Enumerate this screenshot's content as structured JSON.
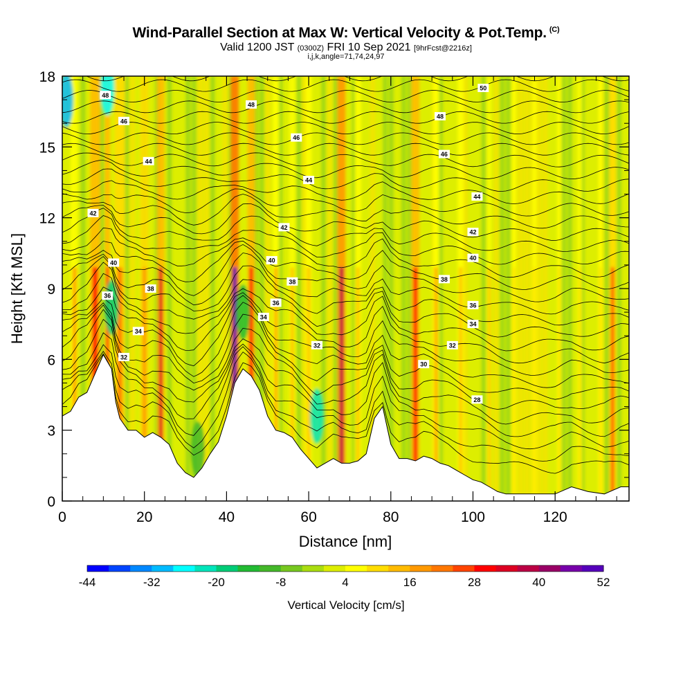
{
  "header": {
    "title": "Wind-Parallel Section at Max W: Vertical Velocity & Pot.Temp.",
    "title_mark": "(C)",
    "valid_prefix": "Valid 1200 JST",
    "valid_utc": "(0300Z)",
    "valid_date": "FRI 10 Sep 2021",
    "forecast_tag": "[9hrFcst@2216z]",
    "indices": "i,j,k,angle=71,74,24,97"
  },
  "chart_data": {
    "type": "heatmap",
    "xlabel": "Distance [nm]",
    "ylabel": "Height [Kft MSL]",
    "xlim": [
      0,
      138
    ],
    "ylim": [
      0,
      18
    ],
    "x_ticks": [
      "0",
      "20",
      "40",
      "60",
      "80",
      "100",
      "120"
    ],
    "x_tick_values": [
      0,
      20,
      40,
      60,
      80,
      100,
      120
    ],
    "y_ticks": [
      "0",
      "3",
      "6",
      "9",
      "12",
      "15",
      "18"
    ],
    "y_tick_values": [
      0,
      3,
      6,
      9,
      12,
      15,
      18
    ],
    "colorbar": {
      "label": "Vertical Velocity [cm/s]",
      "tick_labels": [
        "-44",
        "-32",
        "-20",
        "-8",
        "4",
        "16",
        "28",
        "40",
        "52"
      ],
      "tick_values": [
        -44,
        -32,
        -20,
        -8,
        4,
        16,
        28,
        40,
        52
      ],
      "colors": [
        "#0000ff",
        "#0044ff",
        "#0088ff",
        "#00bbff",
        "#00ffff",
        "#00e5bb",
        "#00cc77",
        "#22bb33",
        "#44b82a",
        "#77c820",
        "#aadd10",
        "#ddee00",
        "#ffff00",
        "#ffdd00",
        "#ffbb00",
        "#ff9900",
        "#ff7700",
        "#ff4400",
        "#ff0000",
        "#dd0022",
        "#bb0044",
        "#990066",
        "#7700aa",
        "#5500bb"
      ]
    },
    "terrain_kft": [
      [
        0,
        3.6
      ],
      [
        2,
        3.8
      ],
      [
        4,
        4.4
      ],
      [
        6,
        4.6
      ],
      [
        8,
        5.4
      ],
      [
        10,
        6.2
      ],
      [
        12,
        5.6
      ],
      [
        13,
        4.2
      ],
      [
        14,
        3.5
      ],
      [
        16,
        3.0
      ],
      [
        18,
        3.0
      ],
      [
        20,
        2.7
      ],
      [
        22,
        2.9
      ],
      [
        24,
        2.7
      ],
      [
        26,
        2.4
      ],
      [
        28,
        1.6
      ],
      [
        30,
        1.2
      ],
      [
        32,
        1.0
      ],
      [
        34,
        1.4
      ],
      [
        36,
        2.0
      ],
      [
        38,
        2.5
      ],
      [
        40,
        3.6
      ],
      [
        42,
        5.0
      ],
      [
        44,
        5.6
      ],
      [
        46,
        5.3
      ],
      [
        48,
        4.7
      ],
      [
        50,
        3.6
      ],
      [
        52,
        3.0
      ],
      [
        54,
        2.9
      ],
      [
        56,
        2.7
      ],
      [
        58,
        2.2
      ],
      [
        60,
        1.8
      ],
      [
        62,
        1.4
      ],
      [
        64,
        1.6
      ],
      [
        66,
        1.8
      ],
      [
        68,
        1.6
      ],
      [
        70,
        1.6
      ],
      [
        72,
        1.7
      ],
      [
        74,
        2.0
      ],
      [
        76,
        3.5
      ],
      [
        78,
        4.0
      ],
      [
        80,
        2.4
      ],
      [
        82,
        1.8
      ],
      [
        84,
        1.8
      ],
      [
        86,
        1.7
      ],
      [
        88,
        1.9
      ],
      [
        90,
        1.8
      ],
      [
        92,
        1.6
      ],
      [
        94,
        1.5
      ],
      [
        96,
        1.3
      ],
      [
        98,
        1.1
      ],
      [
        100,
        0.9
      ],
      [
        102,
        0.8
      ],
      [
        104,
        0.6
      ],
      [
        106,
        0.4
      ],
      [
        108,
        0.3
      ],
      [
        112,
        0.3
      ],
      [
        116,
        0.3
      ],
      [
        120,
        0.3
      ],
      [
        124,
        0.6
      ],
      [
        128,
        0.4
      ],
      [
        132,
        0.3
      ],
      [
        136,
        0.6
      ],
      [
        138,
        0.6
      ]
    ],
    "theta_contours_K": [
      "28",
      "30",
      "32",
      "34",
      "36",
      "38",
      "40",
      "42",
      "44",
      "46",
      "48",
      "50"
    ],
    "theta_contour_labels": [
      {
        "text": "48",
        "x": 10.5,
        "y": 17.2
      },
      {
        "text": "48",
        "x": 46,
        "y": 16.8
      },
      {
        "text": "50",
        "x": 102.5,
        "y": 17.5
      },
      {
        "text": "46",
        "x": 15,
        "y": 16.1
      },
      {
        "text": "48",
        "x": 92,
        "y": 16.3
      },
      {
        "text": "46",
        "x": 57,
        "y": 15.4
      },
      {
        "text": "46",
        "x": 93,
        "y": 14.7
      },
      {
        "text": "44",
        "x": 21,
        "y": 14.4
      },
      {
        "text": "44",
        "x": 60,
        "y": 13.6
      },
      {
        "text": "44",
        "x": 101,
        "y": 12.9
      },
      {
        "text": "42",
        "x": 7.5,
        "y": 12.2
      },
      {
        "text": "42",
        "x": 54,
        "y": 11.6
      },
      {
        "text": "42",
        "x": 100,
        "y": 11.4
      },
      {
        "text": "40",
        "x": 12.5,
        "y": 10.1
      },
      {
        "text": "40",
        "x": 51,
        "y": 10.2
      },
      {
        "text": "40",
        "x": 100,
        "y": 10.3
      },
      {
        "text": "38",
        "x": 21.5,
        "y": 9.0
      },
      {
        "text": "38",
        "x": 56,
        "y": 9.3
      },
      {
        "text": "38",
        "x": 93,
        "y": 9.4
      },
      {
        "text": "36",
        "x": 11,
        "y": 8.7
      },
      {
        "text": "36",
        "x": 52,
        "y": 8.4
      },
      {
        "text": "36",
        "x": 100,
        "y": 8.3
      },
      {
        "text": "34",
        "x": 49,
        "y": 7.8
      },
      {
        "text": "34",
        "x": 100,
        "y": 7.5
      },
      {
        "text": "34",
        "x": 18.5,
        "y": 7.2
      },
      {
        "text": "32",
        "x": 62,
        "y": 6.6
      },
      {
        "text": "32",
        "x": 95,
        "y": 6.6
      },
      {
        "text": "32",
        "x": 15,
        "y": 6.1
      },
      {
        "text": "30",
        "x": 88,
        "y": 5.8
      },
      {
        "text": "28",
        "x": 101,
        "y": 4.3
      }
    ],
    "updraft_bands": [
      {
        "x": 3,
        "w": 2.0,
        "w_cms": 16
      },
      {
        "x": 8,
        "w": 2.5,
        "w_cms": 28
      },
      {
        "x": 11,
        "w": 1.2,
        "w_cms": 30
      },
      {
        "x": 14,
        "w": 2.5,
        "w_cms": 20
      },
      {
        "x": 20,
        "w": 2.0,
        "w_cms": 18
      },
      {
        "x": 24,
        "w": 1.8,
        "w_cms": 34
      },
      {
        "x": 42,
        "w": 2.0,
        "w_cms": 48
      },
      {
        "x": 46,
        "w": 1.8,
        "w_cms": 30
      },
      {
        "x": 52,
        "w": 1.5,
        "w_cms": 16
      },
      {
        "x": 56,
        "w": 1.5,
        "w_cms": 14
      },
      {
        "x": 60,
        "w": 1.5,
        "w_cms": 12
      },
      {
        "x": 68,
        "w": 2.0,
        "w_cms": 36
      },
      {
        "x": 72,
        "w": 1.5,
        "w_cms": 14
      },
      {
        "x": 86,
        "w": 2.0,
        "w_cms": 30
      },
      {
        "x": 91,
        "w": 1.5,
        "w_cms": 16
      },
      {
        "x": 97,
        "w": 1.5,
        "w_cms": 14
      },
      {
        "x": 104,
        "w": 1.2,
        "w_cms": 12
      },
      {
        "x": 110,
        "w": 1.0,
        "w_cms": 10
      },
      {
        "x": 115,
        "w": 1.0,
        "w_cms": 10
      },
      {
        "x": 121,
        "w": 1.0,
        "w_cms": 10
      },
      {
        "x": 126,
        "w": 1.0,
        "w_cms": 10
      },
      {
        "x": 131,
        "w": 1.0,
        "w_cms": 10
      },
      {
        "x": 134,
        "w": 1.6,
        "w_cms": 26
      }
    ],
    "downdraft_blobs": [
      {
        "x": 1,
        "y": 17,
        "w_cms": -30
      },
      {
        "x": 11,
        "y": 17.5,
        "w_cms": -26
      },
      {
        "x": 62,
        "y": 3.6,
        "w_cms": -24
      },
      {
        "x": 12,
        "y": 8.2,
        "w_cms": -20
      },
      {
        "x": 44,
        "y": 8.0,
        "w_cms": -14
      },
      {
        "x": 33,
        "y": 2.2,
        "w_cms": -10
      }
    ]
  }
}
